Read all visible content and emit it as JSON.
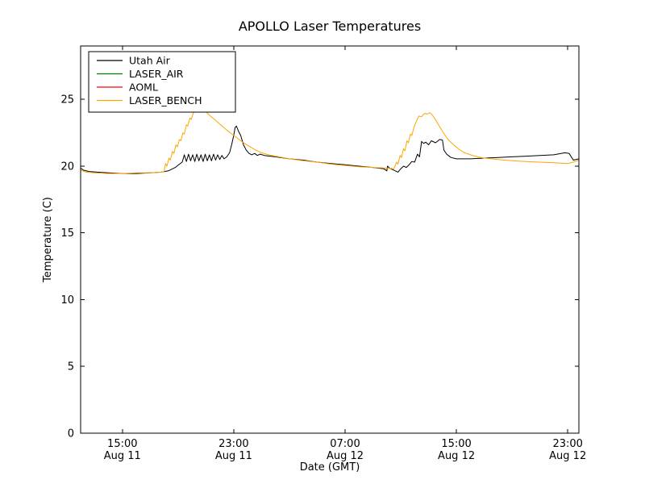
{
  "chart_data": {
    "type": "line",
    "title": "APOLLO Laser Temperatures",
    "xlabel": "Date (GMT)",
    "ylabel": "Temperature (C)",
    "x_unit": "hours since Aug 11 00:00 GMT",
    "xlim": [
      12.0,
      47.8
    ],
    "ylim": [
      0,
      29
    ],
    "yticks": [
      0,
      5,
      10,
      15,
      20,
      25
    ],
    "xticks": [
      {
        "value": 15,
        "label": "15:00",
        "date": "Aug 11"
      },
      {
        "value": 23,
        "label": "23:00",
        "date": "Aug 11"
      },
      {
        "value": 31,
        "label": "07:00",
        "date": "Aug 12"
      },
      {
        "value": 39,
        "label": "15:00",
        "date": "Aug 12"
      },
      {
        "value": 47,
        "label": "23:00",
        "date": "Aug 12"
      }
    ],
    "grid": false,
    "legend_position": "upper left",
    "series": [
      {
        "name": "Utah Air",
        "color": "#000000",
        "points": [
          [
            12.0,
            19.85
          ],
          [
            12.2,
            19.7
          ],
          [
            12.6,
            19.6
          ],
          [
            13.2,
            19.55
          ],
          [
            14.0,
            19.5
          ],
          [
            15.0,
            19.45
          ],
          [
            16.0,
            19.45
          ],
          [
            17.0,
            19.5
          ],
          [
            17.8,
            19.55
          ],
          [
            18.3,
            19.65
          ],
          [
            18.8,
            19.9
          ],
          [
            19.1,
            20.15
          ],
          [
            19.3,
            20.3
          ],
          [
            19.45,
            20.85
          ],
          [
            19.6,
            20.35
          ],
          [
            19.75,
            20.9
          ],
          [
            19.9,
            20.4
          ],
          [
            20.05,
            20.85
          ],
          [
            20.2,
            20.35
          ],
          [
            20.35,
            20.9
          ],
          [
            20.5,
            20.4
          ],
          [
            20.65,
            20.85
          ],
          [
            20.8,
            20.35
          ],
          [
            20.95,
            20.9
          ],
          [
            21.1,
            20.4
          ],
          [
            21.25,
            20.85
          ],
          [
            21.4,
            20.4
          ],
          [
            21.55,
            20.9
          ],
          [
            21.7,
            20.45
          ],
          [
            21.85,
            20.85
          ],
          [
            22.0,
            20.5
          ],
          [
            22.15,
            20.8
          ],
          [
            22.3,
            20.55
          ],
          [
            22.5,
            20.7
          ],
          [
            22.7,
            21.0
          ],
          [
            22.85,
            21.6
          ],
          [
            23.0,
            22.3
          ],
          [
            23.1,
            22.9
          ],
          [
            23.2,
            23.0
          ],
          [
            23.35,
            22.6
          ],
          [
            23.5,
            22.3
          ],
          [
            23.7,
            21.6
          ],
          [
            23.9,
            21.2
          ],
          [
            24.1,
            20.95
          ],
          [
            24.3,
            20.85
          ],
          [
            24.5,
            20.95
          ],
          [
            24.7,
            20.8
          ],
          [
            24.9,
            20.9
          ],
          [
            25.2,
            20.8
          ],
          [
            25.6,
            20.75
          ],
          [
            26.0,
            20.7
          ],
          [
            27.0,
            20.55
          ],
          [
            28.0,
            20.45
          ],
          [
            29.0,
            20.3
          ],
          [
            30.0,
            20.2
          ],
          [
            31.0,
            20.1
          ],
          [
            32.0,
            20.0
          ],
          [
            33.0,
            19.9
          ],
          [
            33.8,
            19.8
          ],
          [
            34.0,
            19.65
          ],
          [
            34.05,
            20.0
          ],
          [
            34.2,
            19.85
          ],
          [
            34.5,
            19.7
          ],
          [
            34.8,
            19.55
          ],
          [
            35.0,
            19.8
          ],
          [
            35.2,
            20.0
          ],
          [
            35.4,
            19.9
          ],
          [
            35.6,
            20.1
          ],
          [
            35.8,
            20.35
          ],
          [
            36.0,
            20.3
          ],
          [
            36.2,
            20.9
          ],
          [
            36.35,
            20.7
          ],
          [
            36.5,
            21.85
          ],
          [
            36.65,
            21.7
          ],
          [
            36.8,
            21.8
          ],
          [
            37.0,
            21.6
          ],
          [
            37.2,
            21.9
          ],
          [
            37.5,
            21.75
          ],
          [
            37.8,
            22.0
          ],
          [
            38.0,
            21.95
          ],
          [
            38.1,
            21.2
          ],
          [
            38.3,
            20.9
          ],
          [
            38.6,
            20.65
          ],
          [
            39.0,
            20.55
          ],
          [
            40.0,
            20.55
          ],
          [
            41.0,
            20.6
          ],
          [
            42.0,
            20.65
          ],
          [
            43.0,
            20.7
          ],
          [
            44.0,
            20.75
          ],
          [
            45.0,
            20.8
          ],
          [
            46.0,
            20.85
          ],
          [
            46.8,
            21.0
          ],
          [
            47.1,
            20.95
          ],
          [
            47.4,
            20.45
          ],
          [
            47.8,
            20.55
          ]
        ]
      },
      {
        "name": "LASER_AIR",
        "color": "#008000",
        "points": []
      },
      {
        "name": "AOML",
        "color": "#ff0000",
        "points": []
      },
      {
        "name": "LASER_BENCH",
        "color": "#ffa500",
        "points": [
          [
            12.0,
            19.7
          ],
          [
            12.4,
            19.55
          ],
          [
            13.0,
            19.5
          ],
          [
            14.0,
            19.45
          ],
          [
            15.0,
            19.45
          ],
          [
            16.0,
            19.5
          ],
          [
            17.0,
            19.5
          ],
          [
            17.8,
            19.55
          ],
          [
            18.0,
            19.6
          ],
          [
            18.1,
            20.2
          ],
          [
            18.2,
            20.0
          ],
          [
            18.35,
            20.6
          ],
          [
            18.45,
            20.45
          ],
          [
            18.6,
            21.1
          ],
          [
            18.7,
            20.95
          ],
          [
            18.85,
            21.6
          ],
          [
            18.95,
            21.45
          ],
          [
            19.1,
            22.0
          ],
          [
            19.2,
            21.9
          ],
          [
            19.35,
            22.5
          ],
          [
            19.45,
            22.4
          ],
          [
            19.6,
            23.1
          ],
          [
            19.7,
            23.0
          ],
          [
            19.85,
            23.6
          ],
          [
            19.95,
            23.5
          ],
          [
            20.1,
            24.0
          ],
          [
            20.3,
            24.25
          ],
          [
            20.5,
            24.35
          ],
          [
            20.7,
            24.3
          ],
          [
            21.0,
            24.05
          ],
          [
            21.5,
            23.6
          ],
          [
            22.0,
            23.15
          ],
          [
            22.5,
            22.7
          ],
          [
            23.0,
            22.3
          ],
          [
            23.5,
            21.9
          ],
          [
            24.0,
            21.55
          ],
          [
            24.5,
            21.25
          ],
          [
            25.0,
            21.0
          ],
          [
            25.5,
            20.85
          ],
          [
            26.0,
            20.75
          ],
          [
            27.0,
            20.55
          ],
          [
            28.0,
            20.4
          ],
          [
            29.0,
            20.3
          ],
          [
            30.0,
            20.15
          ],
          [
            31.0,
            20.05
          ],
          [
            32.0,
            19.95
          ],
          [
            33.0,
            19.9
          ],
          [
            34.0,
            19.85
          ],
          [
            34.5,
            19.8
          ],
          [
            34.7,
            20.3
          ],
          [
            34.8,
            20.15
          ],
          [
            34.95,
            20.8
          ],
          [
            35.05,
            20.65
          ],
          [
            35.2,
            21.3
          ],
          [
            35.3,
            21.15
          ],
          [
            35.45,
            21.9
          ],
          [
            35.55,
            21.75
          ],
          [
            35.7,
            22.4
          ],
          [
            35.8,
            22.3
          ],
          [
            35.95,
            22.9
          ],
          [
            36.1,
            23.3
          ],
          [
            36.3,
            23.75
          ],
          [
            36.5,
            23.7
          ],
          [
            36.7,
            23.95
          ],
          [
            36.9,
            23.9
          ],
          [
            37.1,
            24.0
          ],
          [
            37.3,
            23.8
          ],
          [
            37.6,
            23.3
          ],
          [
            38.0,
            22.6
          ],
          [
            38.4,
            22.0
          ],
          [
            38.8,
            21.6
          ],
          [
            39.2,
            21.25
          ],
          [
            39.6,
            21.0
          ],
          [
            40.0,
            20.85
          ],
          [
            40.5,
            20.7
          ],
          [
            41.0,
            20.6
          ],
          [
            42.0,
            20.5
          ],
          [
            43.0,
            20.4
          ],
          [
            44.0,
            20.35
          ],
          [
            45.0,
            20.3
          ],
          [
            46.0,
            20.25
          ],
          [
            47.0,
            20.2
          ],
          [
            47.4,
            20.3
          ],
          [
            47.8,
            20.45
          ]
        ]
      }
    ]
  }
}
